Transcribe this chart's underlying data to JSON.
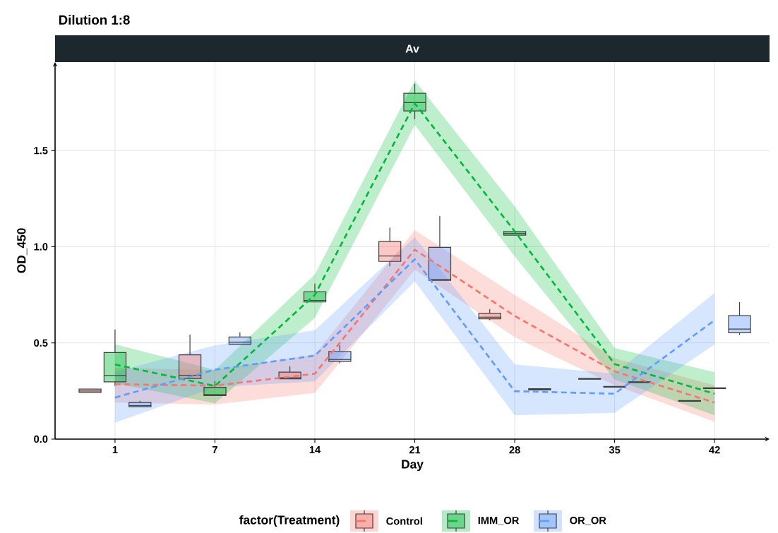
{
  "chart_data": {
    "type": "box",
    "title": "Dilution 1:8",
    "subtitle": "Av",
    "xlabel": "Day",
    "ylabel": "OD_450",
    "legend_title": "factor(Treatment)",
    "legend": "bottom",
    "grid": true,
    "categories": [
      "1",
      "7",
      "14",
      "21",
      "28",
      "35",
      "42"
    ],
    "ylim": [
      0,
      1.96
    ],
    "yticks": [
      {
        "value": 0,
        "label": "0.0"
      },
      {
        "value": 0.5,
        "label": "0.5"
      },
      {
        "value": 1,
        "label": "1.0"
      },
      {
        "value": 1.5,
        "label": "1.5"
      }
    ],
    "series": [
      {
        "type": "line",
        "line_style": "dashed",
        "color": "#f8766d",
        "values": [
          0.285,
          0.278,
          0.34,
          0.985,
          0.64,
          0.352,
          0.19
        ],
        "lower": [
          0.19,
          0.18,
          0.24,
          0.88,
          0.53,
          0.28,
          0.09
        ],
        "upper": [
          0.37,
          0.36,
          0.44,
          1.086,
          0.75,
          0.42,
          0.28
        ]
      },
      {
        "type": "line",
        "line_style": "dashed",
        "color": "#00ba38",
        "values": [
          0.388,
          0.276,
          0.75,
          1.745,
          1.08,
          0.39,
          0.236
        ],
        "lower": [
          0.29,
          0.186,
          0.63,
          1.633,
          0.95,
          0.31,
          0.124
        ],
        "upper": [
          0.493,
          0.36,
          0.856,
          1.864,
          1.21,
          0.473,
          0.348
        ]
      },
      {
        "type": "line",
        "line_style": "dashed",
        "color": "#619cff",
        "values": [
          0.216,
          0.361,
          0.434,
          0.935,
          0.249,
          0.236,
          0.618
        ],
        "lower": [
          0.085,
          0.27,
          0.3,
          0.82,
          0.124,
          0.137,
          0.493
        ],
        "upper": [
          0.35,
          0.487,
          0.566,
          1.05,
          0.388,
          0.34,
          0.76
        ]
      },
      {
        "name": "Control",
        "color": "#f8766d",
        "boxes": [
          {
            "low": 0.243,
            "q1": 0.243,
            "median": 0.25,
            "q3": 0.26,
            "high": 0.26
          },
          {
            "low": 0.315,
            "q1": 0.315,
            "median": 0.332,
            "q3": 0.438,
            "high": 0.543
          },
          {
            "low": 0.313,
            "q1": 0.313,
            "median": 0.319,
            "q3": 0.348,
            "high": 0.379
          },
          {
            "low": 0.898,
            "q1": 0.924,
            "median": 0.952,
            "q3": 1.027,
            "high": 1.099
          },
          {
            "low": 0.618,
            "q1": 0.625,
            "median": 0.634,
            "q3": 0.654,
            "high": 0.675
          },
          {
            "low": 0.311,
            "q1": 0.311,
            "median": 0.313,
            "q3": 0.315,
            "high": 0.315
          },
          {
            "low": 0.197,
            "q1": 0.197,
            "median": 0.199,
            "q3": 0.201,
            "high": 0.201
          }
        ]
      },
      {
        "name": "IMM_OR",
        "color": "#00ba38",
        "boxes": [
          {
            "low": 0.276,
            "q1": 0.298,
            "median": 0.331,
            "q3": 0.45,
            "high": 0.57
          },
          {
            "low": 0.226,
            "q1": 0.226,
            "median": 0.232,
            "q3": 0.269,
            "high": 0.302
          },
          {
            "low": 0.713,
            "q1": 0.713,
            "median": 0.721,
            "q3": 0.766,
            "high": 0.808
          },
          {
            "low": 1.663,
            "q1": 1.706,
            "median": 1.749,
            "q3": 1.798,
            "high": 1.847
          },
          {
            "low": 1.06,
            "q1": 1.06,
            "median": 1.07,
            "q3": 1.08,
            "high": 1.08
          },
          {
            "low": 0.27,
            "q1": 0.27,
            "median": 0.272,
            "q3": 0.274,
            "high": 0.274
          },
          {
            "low": 0.263,
            "q1": 0.263,
            "median": 0.265,
            "q3": 0.267,
            "high": 0.267
          }
        ]
      },
      {
        "name": "OR_OR",
        "color": "#619cff",
        "boxes": [
          {
            "low": 0.168,
            "q1": 0.168,
            "median": 0.174,
            "q3": 0.19,
            "high": 0.199
          },
          {
            "low": 0.493,
            "q1": 0.493,
            "median": 0.504,
            "q3": 0.531,
            "high": 0.555
          },
          {
            "low": 0.394,
            "q1": 0.404,
            "median": 0.414,
            "q3": 0.456,
            "high": 0.489
          },
          {
            "low": 0.825,
            "q1": 0.825,
            "median": 0.83,
            "q3": 0.997,
            "high": 1.161
          },
          {
            "low": 0.255,
            "q1": 0.255,
            "median": 0.258,
            "q3": 0.262,
            "high": 0.262
          },
          {
            "low": 0.294,
            "q1": 0.294,
            "median": 0.296,
            "q3": 0.298,
            "high": 0.298
          },
          {
            "low": 0.542,
            "q1": 0.553,
            "median": 0.572,
            "q3": 0.642,
            "high": 0.712
          }
        ]
      }
    ]
  }
}
